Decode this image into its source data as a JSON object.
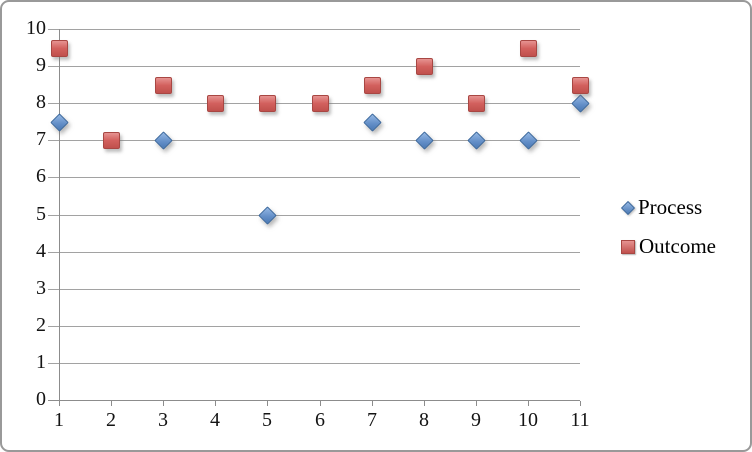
{
  "chart_data": {
    "type": "scatter",
    "title": "",
    "categories": [
      1,
      2,
      3,
      4,
      5,
      6,
      7,
      8,
      9,
      10,
      11
    ],
    "series": [
      {
        "name": "Process",
        "marker": "diamond",
        "color": "#4f81bd",
        "values": [
          7.5,
          null,
          7,
          null,
          5,
          null,
          7.5,
          7,
          7,
          7,
          8
        ]
      },
      {
        "name": "Outcome",
        "marker": "square",
        "color": "#c0504d",
        "values": [
          9.5,
          7,
          8.5,
          8,
          8,
          8,
          8.5,
          9,
          8,
          9.5,
          8.5
        ]
      }
    ],
    "x_axis": {
      "tick_labels": [
        "1",
        "2",
        "3",
        "4",
        "5",
        "6",
        "7",
        "8",
        "9",
        "10",
        "11"
      ]
    },
    "y_axis": {
      "min": 0,
      "max": 10,
      "step": 1,
      "tick_labels": [
        "0",
        "1",
        "2",
        "3",
        "4",
        "5",
        "6",
        "7",
        "8",
        "9",
        "10"
      ]
    },
    "grid": true,
    "legend_position": "right",
    "colors": {
      "gridline": "#a2a2a2",
      "axis": "#8c8c8c",
      "text": "#141414",
      "frame_border": "#999999"
    }
  }
}
